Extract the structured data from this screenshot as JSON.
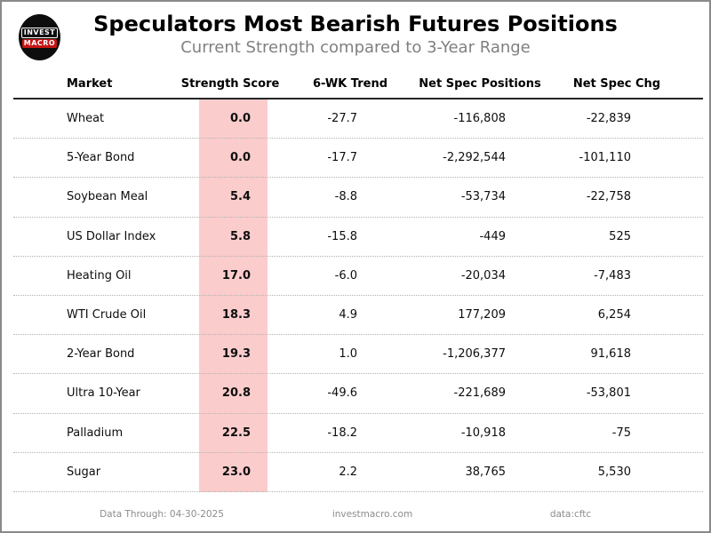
{
  "page": {
    "title": "Speculators Most Bearish Futures Positions",
    "subtitle": "Current Strength compared to 3-Year Range"
  },
  "logo": {
    "line1": "INVEST",
    "line2": "MACRO"
  },
  "table": {
    "columns": [
      "Market",
      "Strength Score",
      "6-WK Trend",
      "Net Spec Positions",
      "Net Spec Chg"
    ],
    "rows": [
      {
        "market": "Wheat",
        "score": "0.0",
        "trend": "-27.7",
        "positions": "-116,808",
        "chg": "-22,839"
      },
      {
        "market": "5-Year Bond",
        "score": "0.0",
        "trend": "-17.7",
        "positions": "-2,292,544",
        "chg": "-101,110"
      },
      {
        "market": "Soybean Meal",
        "score": "5.4",
        "trend": "-8.8",
        "positions": "-53,734",
        "chg": "-22,758"
      },
      {
        "market": "US Dollar Index",
        "score": "5.8",
        "trend": "-15.8",
        "positions": "-449",
        "chg": "525"
      },
      {
        "market": "Heating Oil",
        "score": "17.0",
        "trend": "-6.0",
        "positions": "-20,034",
        "chg": "-7,483"
      },
      {
        "market": "WTI Crude Oil",
        "score": "18.3",
        "trend": "4.9",
        "positions": "177,209",
        "chg": "6,254"
      },
      {
        "market": "2-Year Bond",
        "score": "19.3",
        "trend": "1.0",
        "positions": "-1,206,377",
        "chg": "91,618"
      },
      {
        "market": "Ultra 10-Year",
        "score": "20.8",
        "trend": "-49.6",
        "positions": "-221,689",
        "chg": "-53,801"
      },
      {
        "market": "Palladium",
        "score": "22.5",
        "trend": "-18.2",
        "positions": "-10,918",
        "chg": "-75"
      },
      {
        "market": "Sugar",
        "score": "23.0",
        "trend": "2.2",
        "positions": "38,765",
        "chg": "5,530"
      }
    ]
  },
  "footer": {
    "data_through": "Data Through: 04-30-2025",
    "site": "investmacro.com",
    "source": "data:cftc"
  },
  "colors": {
    "score_band": "#fbcccc",
    "logo_red": "#c41414",
    "subtitle_gray": "#808080",
    "footer_gray": "#8c8c8c"
  },
  "chart_data": {
    "type": "table",
    "title": "Speculators Most Bearish Futures Positions",
    "subtitle": "Current Strength compared to 3-Year Range",
    "columns": [
      "Market",
      "Strength Score",
      "6-WK Trend",
      "Net Spec Positions",
      "Net Spec Chg"
    ],
    "rows": [
      [
        "Wheat",
        0.0,
        -27.7,
        -116808,
        -22839
      ],
      [
        "5-Year Bond",
        0.0,
        -17.7,
        -2292544,
        -101110
      ],
      [
        "Soybean Meal",
        5.4,
        -8.8,
        -53734,
        -22758
      ],
      [
        "US Dollar Index",
        5.8,
        -15.8,
        -449,
        525
      ],
      [
        "Heating Oil",
        17.0,
        -6.0,
        -20034,
        -7483
      ],
      [
        "WTI Crude Oil",
        18.3,
        4.9,
        177209,
        6254
      ],
      [
        "2-Year Bond",
        19.3,
        1.0,
        -1206377,
        91618
      ],
      [
        "Ultra 10-Year",
        20.8,
        -49.6,
        -221689,
        -53801
      ],
      [
        "Palladium",
        22.5,
        -18.2,
        -10918,
        -75
      ],
      [
        "Sugar",
        23.0,
        2.2,
        38765,
        5530
      ]
    ],
    "highlight_column": "Strength Score",
    "sorted_by": "Strength Score ascending",
    "notes": [
      "Data Through: 04-30-2025",
      "investmacro.com",
      "data:cftc"
    ]
  }
}
